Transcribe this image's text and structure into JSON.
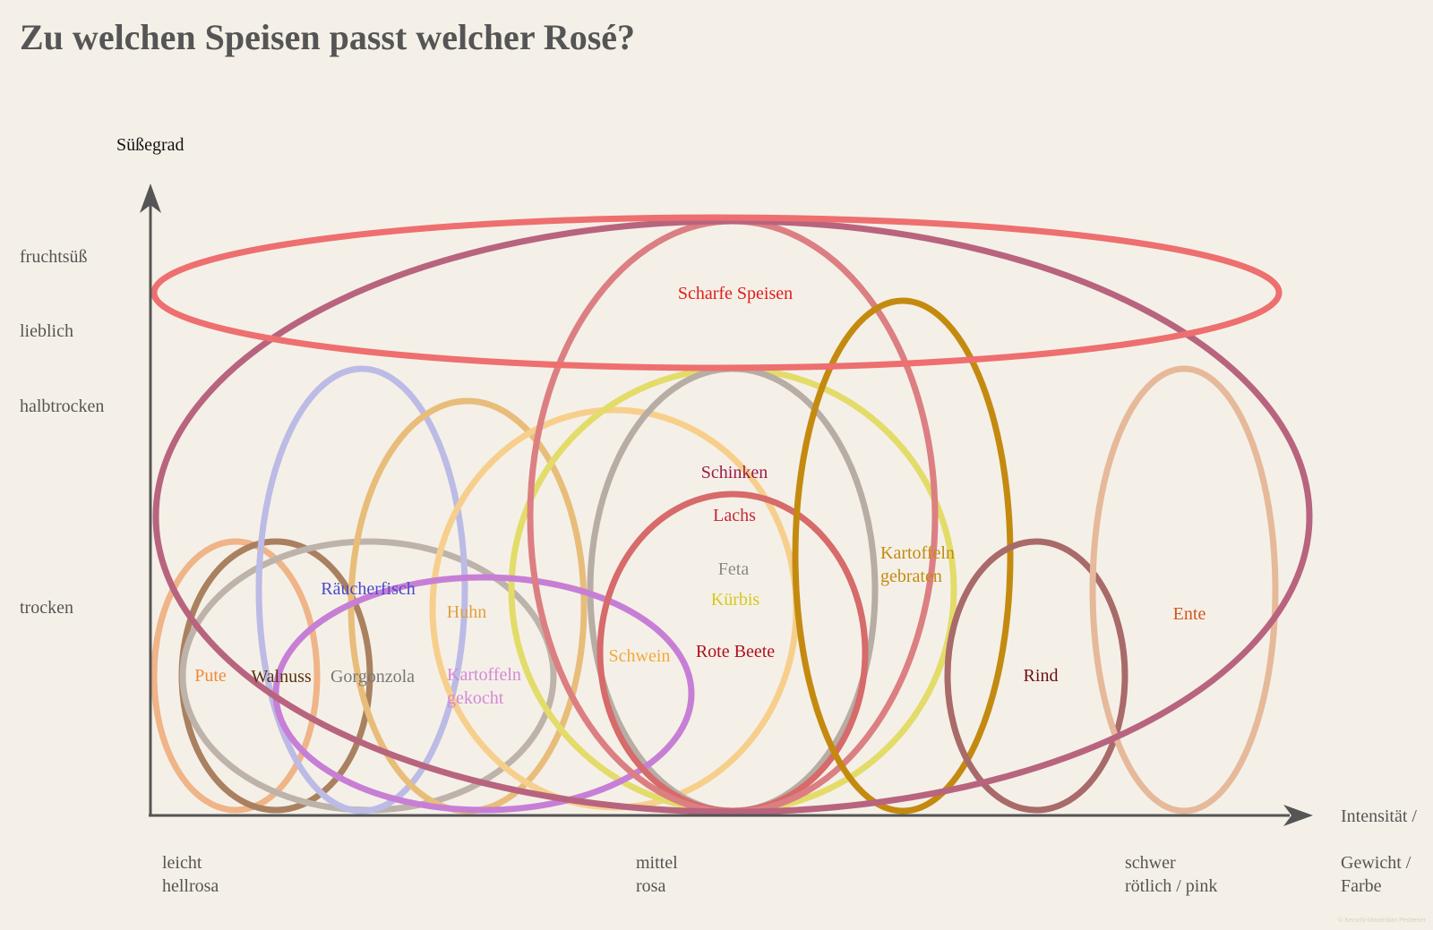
{
  "title": "Zu welchen Speisen passt welcher Rosé?",
  "y_axis": {
    "label": "Süßegrad",
    "levels": {
      "fruchtsuess": "fruchtsüß",
      "lieblich": "lieblich",
      "halbtrocken": "halbtrocken",
      "trocken": "trocken"
    }
  },
  "x_axis": {
    "label_line1": "Intensität /",
    "label_line2": "Gewicht /",
    "label_line3": "Farbe",
    "levels": {
      "leicht": {
        "line1": "leicht",
        "line2": "hellrosa"
      },
      "mittel": {
        "line1": "mittel",
        "line2": "rosa"
      },
      "schwer": {
        "line1": "schwer",
        "line2": "rötlich / pink"
      }
    }
  },
  "foods": {
    "scharfe_speisen": {
      "label": "Scharfe Speisen",
      "text_color": "#e01e1e",
      "ring_color": "#ee6f6f"
    },
    "schinken": {
      "label": "Schinken",
      "text_color": "#9b1b49",
      "ring_color": "#b8647f"
    },
    "lachs": {
      "label": "Lachs",
      "text_color": "#c4283a",
      "ring_color": "#dc7f82"
    },
    "feta": {
      "label": "Feta",
      "text_color": "#8a8a8a",
      "ring_color": "#b7ada5"
    },
    "kuerbis": {
      "label": "Kürbis",
      "text_color": "#d6c81e",
      "ring_color": "#e3dc6a"
    },
    "rote_beete": {
      "label": "Rote Beete",
      "text_color": "#b01020",
      "ring_color": "#d76a6a"
    },
    "schwein": {
      "label": "Schwein",
      "text_color": "#f0a83c",
      "ring_color": "#f7cf8d"
    },
    "kartoffeln_gebraten": {
      "line1": "Kartoffeln",
      "line2": "gebraten",
      "text_color": "#c48a10",
      "ring_color": "#c48a10"
    },
    "rind": {
      "label": "Rind",
      "text_color": "#6b1010",
      "ring_color": "#a96a6a"
    },
    "ente": {
      "label": "Ente",
      "text_color": "#d0561c",
      "ring_color": "#e6b99a"
    },
    "raeucherfisch": {
      "label": "Räucherfisch",
      "text_color": "#4a4acb",
      "ring_color": "#bcbbe6"
    },
    "huhn": {
      "label": "Huhn",
      "text_color": "#e0a040",
      "ring_color": "#e8bd7a"
    },
    "kartoffeln_gekocht": {
      "line1": "Kartoffeln",
      "line2": "gekocht",
      "text_color": "#d488d8",
      "ring_color": "#c77fd6"
    },
    "pute": {
      "label": "Pute",
      "text_color": "#ee8a3a",
      "ring_color": "#efb487"
    },
    "walnuss": {
      "label": "Walnuss",
      "text_color": "#5a3010",
      "ring_color": "#a98160"
    },
    "gorgonzola": {
      "label": "Gorgonzola",
      "text_color": "#777777",
      "ring_color": "#bdb3aa"
    }
  },
  "copyright": "© Kerschi-Maximilian Pestemer"
}
